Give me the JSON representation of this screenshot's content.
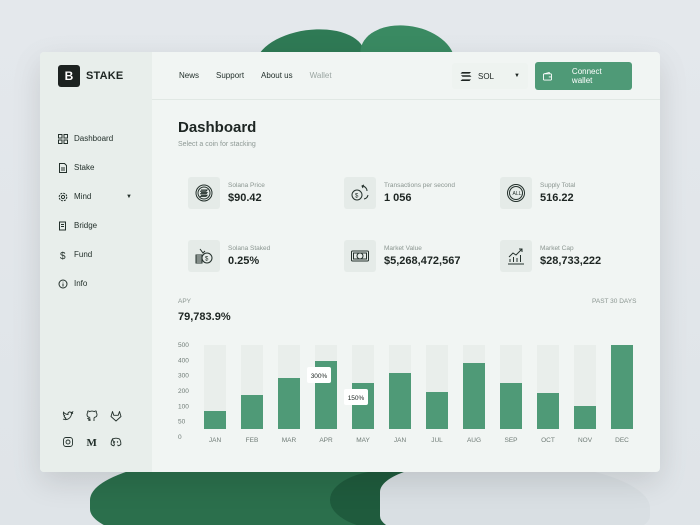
{
  "brand": {
    "name": "STAKE",
    "mark": "B"
  },
  "sidebar": {
    "items": [
      {
        "label": "Dashboard",
        "icon": "grid-icon"
      },
      {
        "label": "Stake",
        "icon": "document-icon"
      },
      {
        "label": "Mind",
        "icon": "gear-icon",
        "has_caret": true
      },
      {
        "label": "Bridge",
        "icon": "book-icon"
      },
      {
        "label": "Fund",
        "icon": "dollar-icon"
      },
      {
        "label": "Info",
        "icon": "info-icon"
      }
    ],
    "socials": [
      "twitter-icon",
      "github-icon",
      "gitlab-icon",
      "instagram-icon",
      "medium-icon",
      "discord-icon"
    ]
  },
  "topnav": {
    "links": [
      "News",
      "Support",
      "About us",
      "Wallet"
    ],
    "coin": "SOL",
    "connect_label": "Connect wallet"
  },
  "page": {
    "title": "Dashboard",
    "subtitle": "Select a coin for stacking"
  },
  "stats": [
    {
      "label": "Solana Price",
      "value": "$90.42",
      "icon": "solana-coin-icon"
    },
    {
      "label": "Transactions per second",
      "value": "1 056",
      "icon": "coin-transfer-icon"
    },
    {
      "label": "Supply Total",
      "value": "516.22",
      "icon": "all-coins-icon"
    },
    {
      "label": "Solana Staked",
      "value": "0.25%",
      "icon": "coin-stack-icon"
    },
    {
      "label": "Market Value",
      "value": "$5,268,472,567",
      "icon": "banknote-icon"
    },
    {
      "label": "Market Cap",
      "value": "$28,733,222",
      "icon": "growth-chart-icon"
    }
  ],
  "apy": {
    "label": "APY",
    "value": "79,783.9%",
    "period": "PAST 30 DAYS"
  },
  "colors": {
    "accent": "#4f9a77",
    "bar": "#4f9a77",
    "bar_bg": "#e9eeeb"
  },
  "chart_data": {
    "type": "bar",
    "categories": [
      "JAN",
      "FEB",
      "MAR",
      "APR",
      "MAY",
      "JAN",
      "JUL",
      "AUG",
      "SEP",
      "OCT",
      "NOV",
      "DEC"
    ],
    "values": [
      90,
      170,
      255,
      340,
      230,
      280,
      185,
      330,
      230,
      180,
      115,
      420
    ],
    "yticks": [
      "500",
      "400",
      "300",
      "200",
      "100",
      "50",
      "0"
    ],
    "annotations": [
      {
        "category": "APR",
        "label": "300%"
      },
      {
        "category": "MAY",
        "label": "150%"
      }
    ],
    "grid": false
  }
}
